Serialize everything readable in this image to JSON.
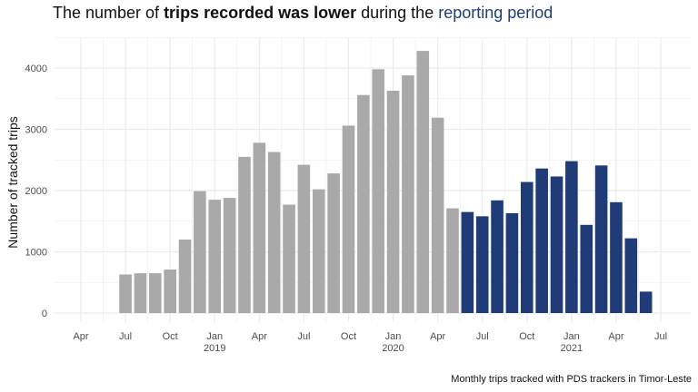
{
  "chart_data": {
    "type": "bar",
    "title": {
      "part1": "The number of ",
      "bold": "trips recorded was lower",
      "part2": " during the ",
      "highlight": "reporting period"
    },
    "ylabel": "Number of tracked trips",
    "xlabel": "",
    "caption": "Monthly trips tracked with PDS trackers in Timor-Leste",
    "ylim": [
      0,
      4500
    ],
    "grid": true,
    "legend": "none",
    "y_ticks": [
      0,
      1000,
      2000,
      3000,
      4000
    ],
    "x_ticks": [
      {
        "date": "2018-04",
        "label": "Apr",
        "year": ""
      },
      {
        "date": "2018-07",
        "label": "Jul",
        "year": ""
      },
      {
        "date": "2018-10",
        "label": "Oct",
        "year": ""
      },
      {
        "date": "2019-01",
        "label": "Jan",
        "year": "2019"
      },
      {
        "date": "2019-04",
        "label": "Apr",
        "year": ""
      },
      {
        "date": "2019-07",
        "label": "Jul",
        "year": ""
      },
      {
        "date": "2019-10",
        "label": "Oct",
        "year": ""
      },
      {
        "date": "2020-01",
        "label": "Jan",
        "year": "2020"
      },
      {
        "date": "2020-04",
        "label": "Apr",
        "year": ""
      },
      {
        "date": "2020-07",
        "label": "Jul",
        "year": ""
      },
      {
        "date": "2020-10",
        "label": "Oct",
        "year": ""
      },
      {
        "date": "2021-01",
        "label": "Jan",
        "year": "2021"
      },
      {
        "date": "2021-04",
        "label": "Apr",
        "year": ""
      },
      {
        "date": "2021-07",
        "label": "Jul",
        "year": ""
      }
    ],
    "x_range": [
      "2018-03",
      "2021-08"
    ],
    "colors": {
      "before": "#a9a9a9",
      "reporting": "#1f3c78",
      "grid": "#ebebeb",
      "text": "#4d4d4d"
    },
    "series": [
      {
        "key": "before",
        "points": [
          {
            "x": "2018-07",
            "y": 630
          },
          {
            "x": "2018-08",
            "y": 650
          },
          {
            "x": "2018-09",
            "y": 650
          },
          {
            "x": "2018-10",
            "y": 710
          },
          {
            "x": "2018-11",
            "y": 1200
          },
          {
            "x": "2018-12",
            "y": 1990
          },
          {
            "x": "2019-01",
            "y": 1850
          },
          {
            "x": "2019-02",
            "y": 1880
          },
          {
            "x": "2019-03",
            "y": 2550
          },
          {
            "x": "2019-04",
            "y": 2780
          },
          {
            "x": "2019-05",
            "y": 2630
          },
          {
            "x": "2019-06",
            "y": 1770
          },
          {
            "x": "2019-07",
            "y": 2420
          },
          {
            "x": "2019-08",
            "y": 2020
          },
          {
            "x": "2019-09",
            "y": 2280
          },
          {
            "x": "2019-10",
            "y": 3060
          },
          {
            "x": "2019-11",
            "y": 3560
          },
          {
            "x": "2019-12",
            "y": 3980
          },
          {
            "x": "2020-01",
            "y": 3630
          },
          {
            "x": "2020-02",
            "y": 3880
          },
          {
            "x": "2020-03",
            "y": 4280
          },
          {
            "x": "2020-04",
            "y": 3190
          },
          {
            "x": "2020-05",
            "y": 1710
          }
        ]
      },
      {
        "key": "reporting",
        "points": [
          {
            "x": "2020-06",
            "y": 1650
          },
          {
            "x": "2020-07",
            "y": 1580
          },
          {
            "x": "2020-08",
            "y": 1840
          },
          {
            "x": "2020-09",
            "y": 1630
          },
          {
            "x": "2020-10",
            "y": 2140
          },
          {
            "x": "2020-11",
            "y": 2360
          },
          {
            "x": "2020-12",
            "y": 2230
          },
          {
            "x": "2021-01",
            "y": 2480
          },
          {
            "x": "2021-02",
            "y": 1440
          },
          {
            "x": "2021-03",
            "y": 2410
          },
          {
            "x": "2021-04",
            "y": 1810
          },
          {
            "x": "2021-05",
            "y": 1220
          },
          {
            "x": "2021-06",
            "y": 350
          }
        ]
      }
    ]
  }
}
